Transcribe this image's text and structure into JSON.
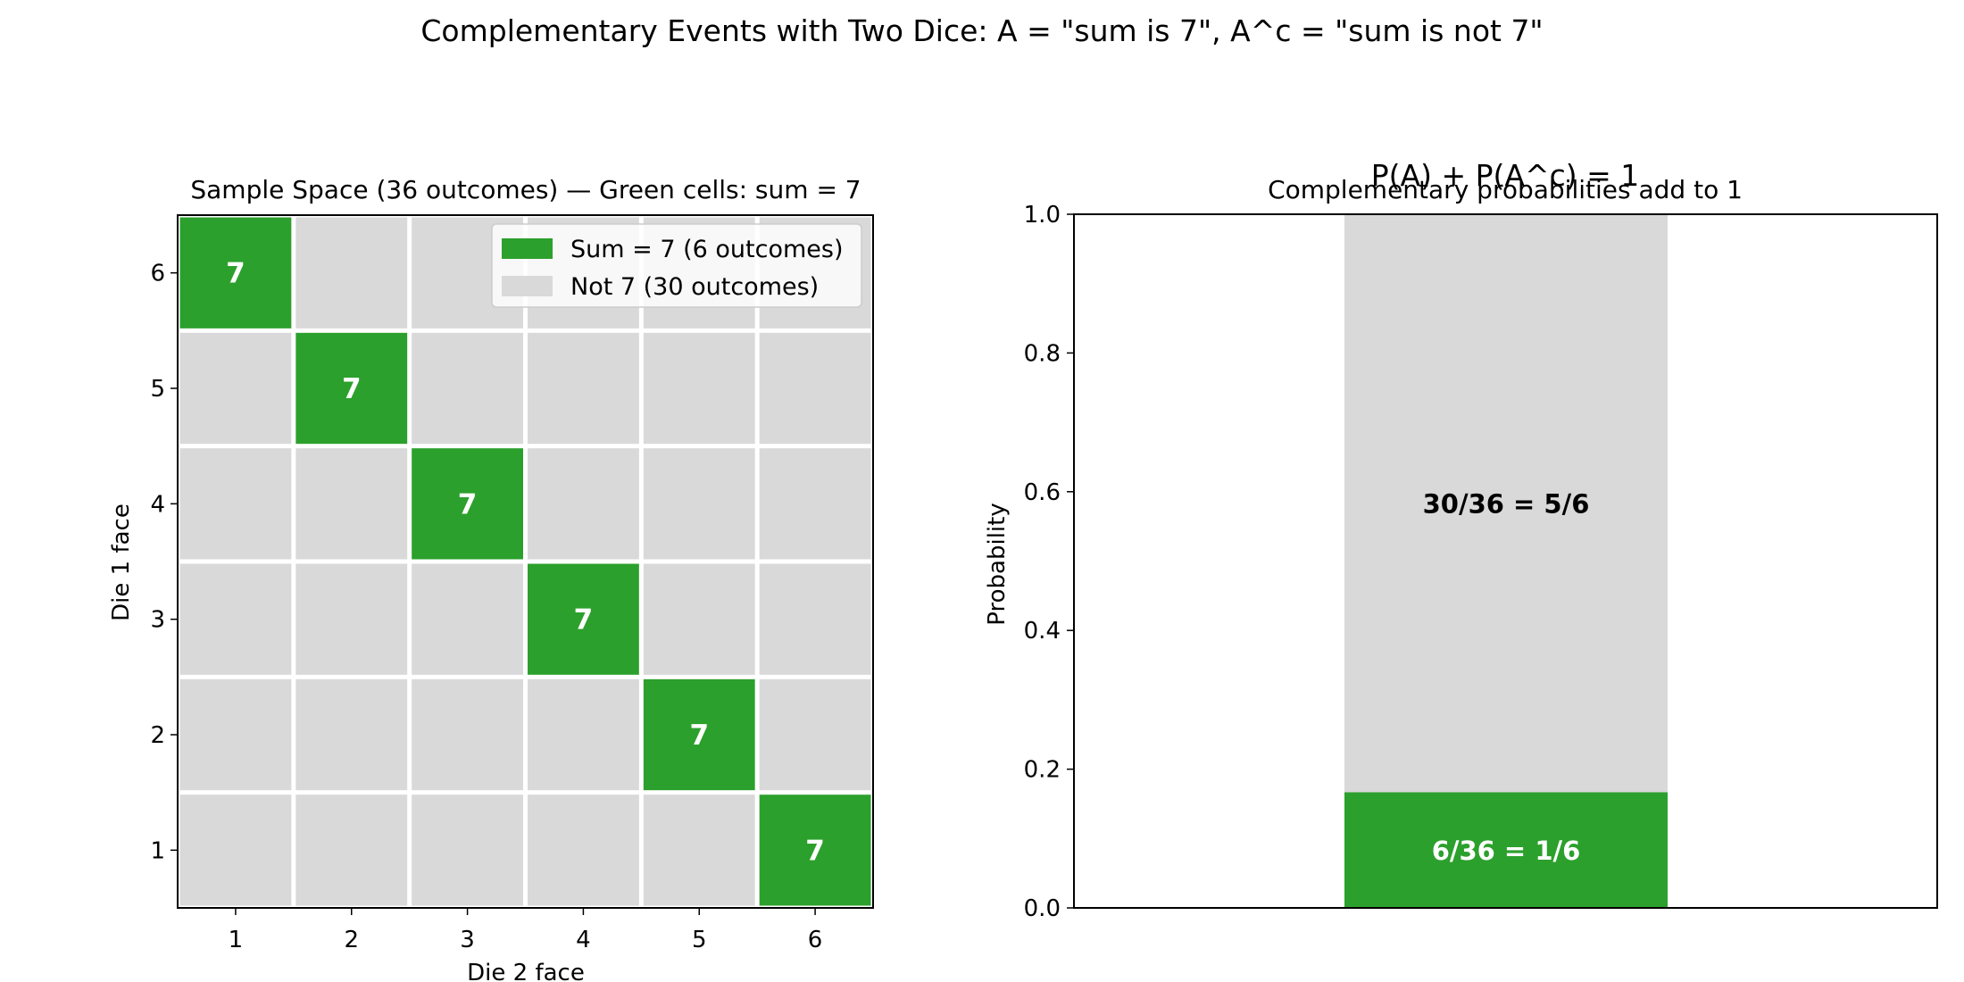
{
  "suptitle": "Complementary Events with Two Dice: A = \"sum is 7\", A^c = \"sum is not 7\"",
  "colors": {
    "event": "#2ca02c",
    "complement": "#d9d9d9"
  },
  "chart_data": [
    {
      "type": "heatmap",
      "title": "Sample Space (36 outcomes) — Green cells: sum = 7",
      "xlabel": "Die 2 face",
      "ylabel": "Die 1 face",
      "x_ticks": [
        "1",
        "2",
        "3",
        "4",
        "5",
        "6"
      ],
      "y_ticks": [
        "1",
        "2",
        "3",
        "4",
        "5",
        "6"
      ],
      "highlight_cells": [
        {
          "die1": 6,
          "die2": 1,
          "label": "7"
        },
        {
          "die1": 5,
          "die2": 2,
          "label": "7"
        },
        {
          "die1": 4,
          "die2": 3,
          "label": "7"
        },
        {
          "die1": 3,
          "die2": 4,
          "label": "7"
        },
        {
          "die1": 2,
          "die2": 5,
          "label": "7"
        },
        {
          "die1": 1,
          "die2": 6,
          "label": "7"
        }
      ],
      "legend": [
        "Sum = 7 (6 outcomes)",
        "Not 7 (30 outcomes)"
      ],
      "legend_position": "top-right"
    },
    {
      "type": "bar",
      "overlay_title": "P(A) + P(A^c) = 1",
      "title": "Complementary probabilities add to 1",
      "ylabel": "Probability",
      "ylim": [
        0,
        1
      ],
      "y_ticks": [
        "0.0",
        "0.2",
        "0.4",
        "0.6",
        "0.8",
        "1.0"
      ],
      "series": [
        {
          "value": 0.16667,
          "label": "6/36 = 1/6"
        },
        {
          "value": 0.83333,
          "label": "30/36 = 5/6"
        }
      ]
    }
  ]
}
